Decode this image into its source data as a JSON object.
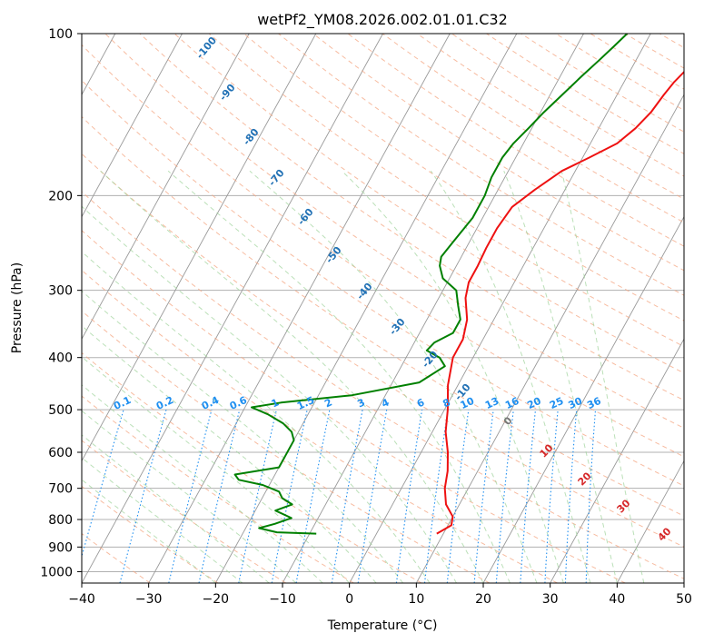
{
  "chart_data": {
    "type": "line",
    "title": "wetPf2_YM08.2026.002.01.01.C32",
    "xlabel": "Temperature (°C)",
    "ylabel": "Pressure (hPa)",
    "xlim": [
      -40,
      50
    ],
    "ylim": [
      1050,
      100
    ],
    "y_scale": "log",
    "x_ticks": [
      -40,
      -30,
      -20,
      -10,
      0,
      10,
      20,
      30,
      40,
      50
    ],
    "y_ticks": [
      100,
      200,
      300,
      400,
      500,
      600,
      700,
      800,
      900,
      1000
    ],
    "grid": true,
    "series": [
      {
        "color": "#ee1111",
        "points": [
          [
            9,
            850
          ],
          [
            10.5,
            820
          ],
          [
            10,
            790
          ],
          [
            8,
            750
          ],
          [
            6.5,
            700
          ],
          [
            5.5,
            650
          ],
          [
            4,
            600
          ],
          [
            2,
            550
          ],
          [
            0.5,
            500
          ],
          [
            -1.5,
            450
          ],
          [
            -3,
            400
          ],
          [
            -3,
            370
          ],
          [
            -4,
            340
          ],
          [
            -6,
            310
          ],
          [
            -6.8,
            290
          ],
          [
            -6.8,
            270
          ],
          [
            -7,
            250
          ],
          [
            -7,
            230
          ],
          [
            -6.5,
            210
          ],
          [
            -4.5,
            195
          ],
          [
            -2,
            180
          ],
          [
            1,
            170
          ],
          [
            4,
            160
          ],
          [
            5.5,
            150
          ],
          [
            6.5,
            140
          ],
          [
            7,
            130
          ],
          [
            7.5,
            123
          ],
          [
            8.5,
            115
          ],
          [
            10,
            108
          ],
          [
            11,
            100
          ]
        ]
      },
      {
        "color": "#008000",
        "points": [
          [
            -9,
            850
          ],
          [
            -15,
            845
          ],
          [
            -18,
            830
          ],
          [
            -16,
            815
          ],
          [
            -14,
            795
          ],
          [
            -17,
            770
          ],
          [
            -15,
            750
          ],
          [
            -17,
            730
          ],
          [
            -18,
            710
          ],
          [
            -21,
            690
          ],
          [
            -25,
            675
          ],
          [
            -26,
            660
          ],
          [
            -20,
            640
          ],
          [
            -20,
            610
          ],
          [
            -20,
            570
          ],
          [
            -21,
            550
          ],
          [
            -23,
            530
          ],
          [
            -26,
            510
          ],
          [
            -29,
            495
          ],
          [
            -25,
            485
          ],
          [
            -15,
            470
          ],
          [
            -6,
            445
          ],
          [
            -3.5,
            415
          ],
          [
            -5,
            400
          ],
          [
            -7.5,
            388
          ],
          [
            -7,
            375
          ],
          [
            -5,
            360
          ],
          [
            -5,
            340
          ],
          [
            -6.5,
            320
          ],
          [
            -8,
            300
          ],
          [
            -11,
            285
          ],
          [
            -12.5,
            270
          ],
          [
            -13,
            260
          ],
          [
            -12.5,
            245
          ],
          [
            -11.5,
            220
          ],
          [
            -11.5,
            200
          ],
          [
            -12,
            185
          ],
          [
            -12,
            170
          ],
          [
            -11.5,
            160
          ],
          [
            -10.5,
            150
          ],
          [
            -9.5,
            140
          ],
          [
            -8.2,
            130
          ],
          [
            -6.8,
            120
          ],
          [
            -5.5,
            112
          ],
          [
            -4.5,
            106
          ],
          [
            -3.5,
            100
          ]
        ]
      }
    ],
    "mixing_ratio_labels": [
      "0.1",
      "0.2",
      "0.4",
      "0.6",
      "1",
      "1.5",
      "2",
      "3",
      "4",
      "6",
      "8",
      "10",
      "13",
      "16",
      "20",
      "25",
      "30",
      "36"
    ],
    "dry_adiabat_labels": [
      "-100",
      "-90",
      "-80",
      "-70",
      "-60",
      "-50",
      "-40",
      "-30",
      "-20",
      "-10",
      "0"
    ],
    "moist_adiabat_labels": [
      "10",
      "20",
      "30",
      "40"
    ],
    "colors": {
      "temperature": "#ee1111",
      "dewpoint": "#008000",
      "dry_adiabat": "#f4a582",
      "moist_adiabat": "#9ed39a",
      "mixing_ratio": "#1f8ff0",
      "isotherm": "#999999"
    }
  }
}
